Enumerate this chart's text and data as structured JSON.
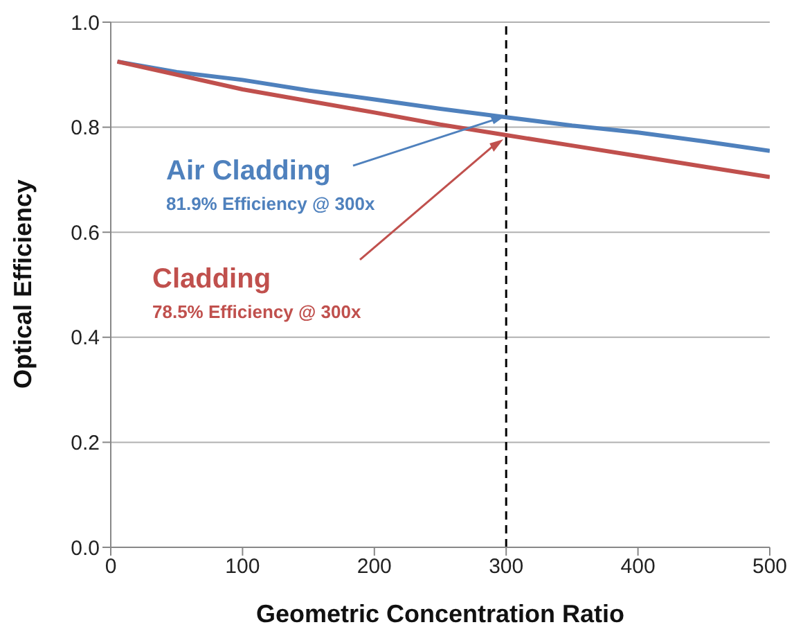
{
  "chart_data": {
    "type": "line",
    "xlabel": "Geometric Concentration Ratio",
    "ylabel": "Optical Efficiency",
    "x": [
      5,
      50,
      100,
      150,
      200,
      250,
      300,
      350,
      400,
      450,
      500
    ],
    "series": [
      {
        "name": "Air Cladding",
        "color": "#4f81bd",
        "values": [
          0.925,
          0.905,
          0.89,
          0.87,
          0.853,
          0.835,
          0.819,
          0.803,
          0.79,
          0.773,
          0.755
        ]
      },
      {
        "name": "Cladding",
        "color": "#c0504d",
        "values": [
          0.925,
          0.9,
          0.872,
          0.85,
          0.828,
          0.805,
          0.785,
          0.765,
          0.745,
          0.725,
          0.705
        ]
      }
    ],
    "annotations": [
      "81.9% Efficiency @ 300x",
      "78.5% Efficiency @ 300x"
    ],
    "ref_lines": [
      {
        "axis": "x",
        "value": 300,
        "color": "#000000",
        "line_style": "dashed"
      }
    ],
    "xlim": [
      0,
      500
    ],
    "xticks": [
      0,
      100,
      200,
      300,
      400,
      500
    ],
    "ylim": [
      0,
      1
    ],
    "yticks": [
      {
        "value": 0,
        "label": "0.0"
      },
      {
        "value": 0.2,
        "label": "0.2"
      },
      {
        "value": 0.4,
        "label": "0.4"
      },
      {
        "value": 0.6,
        "label": "0.6"
      },
      {
        "value": 0.8,
        "label": "0.8"
      },
      {
        "value": 1,
        "label": "1.0"
      }
    ],
    "grid": "y",
    "legend": false,
    "marker": "none",
    "line_style": "solid"
  }
}
